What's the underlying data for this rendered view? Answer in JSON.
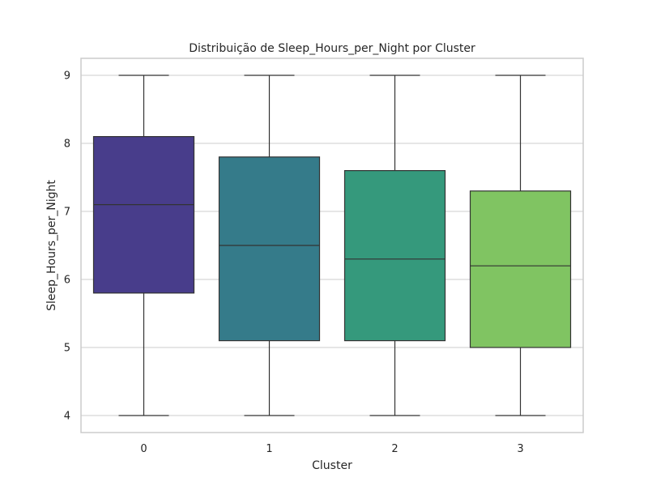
{
  "chart_data": {
    "type": "box",
    "title": "Distribuição de Sleep_Hours_per_Night por Cluster",
    "xlabel": "Cluster",
    "ylabel": "Sleep_Hours_per_Night",
    "categories": [
      "0",
      "1",
      "2",
      "3"
    ],
    "yticks": [
      "4",
      "5",
      "6",
      "7",
      "8",
      "9"
    ],
    "ylim": [
      3.75,
      9.25
    ],
    "grid": "horizontal",
    "boxes": [
      {
        "category": "0",
        "min": 4.0,
        "q1": 5.8,
        "median": 7.1,
        "q3": 8.1,
        "max": 9.0,
        "color": "#483D8B"
      },
      {
        "category": "1",
        "min": 4.0,
        "q1": 5.1,
        "median": 6.5,
        "q3": 7.8,
        "max": 9.0,
        "color": "#357B8A"
      },
      {
        "category": "2",
        "min": 4.0,
        "q1": 5.1,
        "median": 6.3,
        "q3": 7.6,
        "max": 9.0,
        "color": "#35997C"
      },
      {
        "category": "3",
        "min": 4.0,
        "q1": 5.0,
        "median": 6.2,
        "q3": 7.3,
        "max": 9.0,
        "color": "#80C462"
      }
    ]
  }
}
